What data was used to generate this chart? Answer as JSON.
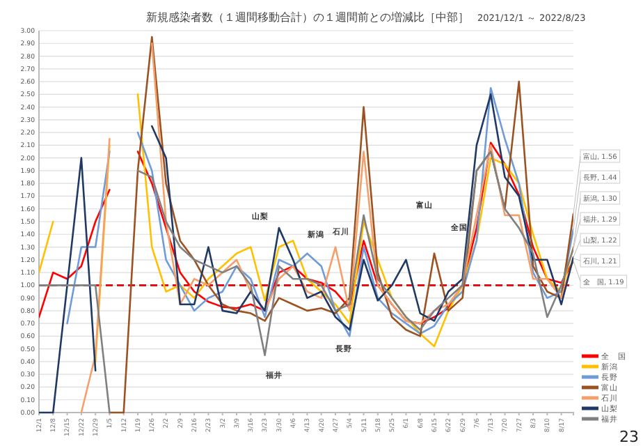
{
  "chart_data": {
    "type": "line",
    "title": "新規感染者数（１週間移動合計）の１週間前との増減比［中部］",
    "subtitle": "2021/12/1 ～ 2022/8/23",
    "x": [
      "2021-12-01",
      "2021-12-08",
      "2021-12-15",
      "2021-12-22",
      "2021-12-29",
      "2022-01-05",
      "2022-01-12",
      "2022-01-19",
      "2022-01-26",
      "2022-02-02",
      "2022-02-09",
      "2022-02-16",
      "2022-02-23",
      "2022-03-02",
      "2022-03-09",
      "2022-03-16",
      "2022-03-23",
      "2022-03-30",
      "2022-04-06",
      "2022-04-13",
      "2022-04-20",
      "2022-04-27",
      "2022-05-04",
      "2022-05-11",
      "2022-05-18",
      "2022-05-25",
      "2022-06-01",
      "2022-06-08",
      "2022-06-15",
      "2022-06-22",
      "2022-06-29",
      "2022-07-06",
      "2022-07-13",
      "2022-07-20",
      "2022-07-27",
      "2022-08-03",
      "2022-08-10",
      "2022-08-17",
      "2022-08-23"
    ],
    "series": [
      {
        "name": "全　国",
        "color": "#ff0000",
        "values": [
          0.75,
          1.1,
          1.05,
          1.15,
          1.5,
          1.75,
          null,
          2.05,
          1.8,
          1.45,
          1.1,
          0.95,
          0.87,
          0.83,
          0.82,
          0.85,
          0.8,
          1.1,
          1.15,
          1.05,
          1.02,
          0.95,
          0.82,
          1.35,
          1.0,
          0.85,
          0.72,
          0.7,
          0.75,
          0.82,
          1.0,
          1.45,
          2.12,
          1.95,
          1.71,
          1.3,
          1.05,
          1.02,
          1.19
        ]
      },
      {
        "name": "新潟",
        "color": "#ffc000",
        "values": [
          1.1,
          1.5,
          null,
          null,
          0.4,
          2.1,
          null,
          2.5,
          1.3,
          0.95,
          1.0,
          0.9,
          1.05,
          1.15,
          1.25,
          1.3,
          0.88,
          1.3,
          1.35,
          1.05,
          0.95,
          0.85,
          0.7,
          1.5,
          1.2,
          0.9,
          0.75,
          0.62,
          0.52,
          0.8,
          1.0,
          1.35,
          2.0,
          1.95,
          1.8,
          1.4,
          1.05,
          0.95,
          1.3
        ]
      },
      {
        "name": "長野",
        "color": "#6f9bd8",
        "values": [
          null,
          null,
          0.7,
          1.3,
          1.3,
          2.05,
          null,
          2.2,
          1.9,
          1.2,
          1.0,
          0.8,
          0.9,
          0.95,
          1.15,
          1.05,
          0.75,
          1.2,
          1.15,
          1.25,
          1.15,
          0.8,
          0.6,
          1.3,
          0.9,
          0.78,
          0.7,
          0.62,
          0.68,
          0.85,
          0.95,
          1.35,
          2.55,
          2.15,
          1.8,
          1.1,
          0.9,
          0.95,
          1.44
        ]
      },
      {
        "name": "富山",
        "color": "#9c5220",
        "values": [
          null,
          null,
          null,
          null,
          null,
          0.0,
          0.0,
          1.9,
          2.95,
          1.8,
          1.35,
          1.2,
          1.0,
          0.85,
          0.8,
          0.78,
          0.72,
          0.9,
          0.85,
          0.8,
          0.82,
          0.78,
          0.9,
          2.4,
          1.1,
          0.75,
          0.65,
          0.6,
          1.25,
          0.8,
          0.9,
          1.9,
          2.05,
          1.6,
          2.6,
          1.15,
          0.95,
          0.9,
          1.56
        ]
      },
      {
        "name": "石川",
        "color": "#f4a06a",
        "values": [
          null,
          null,
          null,
          0.0,
          0.45,
          2.15,
          null,
          null,
          2.9,
          1.5,
          0.85,
          1.05,
          1.0,
          1.1,
          1.2,
          0.95,
          0.8,
          1.05,
          1.15,
          0.95,
          0.9,
          1.3,
          0.8,
          2.05,
          1.0,
          0.85,
          0.72,
          0.7,
          0.8,
          0.85,
          1.0,
          1.55,
          2.1,
          1.55,
          1.55,
          1.05,
          1.05,
          0.9,
          1.21
        ]
      },
      {
        "name": "山梨",
        "color": "#1f3864",
        "values": [
          0.0,
          0.0,
          1.0,
          2.0,
          0.33,
          null,
          null,
          null,
          2.25,
          2.0,
          0.85,
          0.85,
          1.3,
          0.8,
          0.78,
          0.95,
          0.8,
          1.45,
          1.2,
          0.9,
          0.95,
          0.75,
          0.65,
          1.2,
          0.88,
          1.0,
          1.2,
          0.78,
          0.72,
          0.95,
          1.05,
          2.1,
          2.5,
          1.85,
          1.7,
          1.2,
          1.2,
          0.85,
          1.22
        ]
      },
      {
        "name": "福井",
        "color": "#808080",
        "values": [
          1.0,
          1.0,
          1.0,
          1.0,
          1.0,
          0.0,
          null,
          1.9,
          1.85,
          1.5,
          1.3,
          1.2,
          1.15,
          1.1,
          1.15,
          1.0,
          0.45,
          1.15,
          1.05,
          1.05,
          1.0,
          0.8,
          0.85,
          1.55,
          1.05,
          0.9,
          0.75,
          0.65,
          0.8,
          0.9,
          1.0,
          1.9,
          2.05,
          1.6,
          1.45,
          1.25,
          0.75,
          1.0,
          1.29
        ]
      }
    ],
    "ylim": [
      0,
      3
    ],
    "yticks": [
      {
        "value": 0,
        "label": "0.00"
      },
      {
        "value": 0.1,
        "label": "0.10"
      },
      {
        "value": 0.2,
        "label": "0.20"
      },
      {
        "value": 0.3,
        "label": "0.30"
      },
      {
        "value": 0.4,
        "label": "0.40"
      },
      {
        "value": 0.5,
        "label": "0.50"
      },
      {
        "value": 0.6,
        "label": "0.60"
      },
      {
        "value": 0.7,
        "label": "0.70"
      },
      {
        "value": 0.8,
        "label": "0.80"
      },
      {
        "value": 0.9,
        "label": "0.90"
      },
      {
        "value": 1,
        "label": "1.00"
      },
      {
        "value": 1.1,
        "label": "1.10"
      },
      {
        "value": 1.2,
        "label": "1.20"
      },
      {
        "value": 1.3,
        "label": "1.30"
      },
      {
        "value": 1.4,
        "label": "1.40"
      },
      {
        "value": 1.5,
        "label": "1.50"
      },
      {
        "value": 1.6,
        "label": "1.60"
      },
      {
        "value": 1.7,
        "label": "1.70"
      },
      {
        "value": 1.8,
        "label": "1.80"
      },
      {
        "value": 1.9,
        "label": "1.90"
      },
      {
        "value": 2,
        "label": "2.00"
      },
      {
        "value": 2.1,
        "label": "2.10"
      },
      {
        "value": 2.2,
        "label": "2.20"
      },
      {
        "value": 2.3,
        "label": "2.30"
      },
      {
        "value": 2.4,
        "label": "2.40"
      },
      {
        "value": 2.5,
        "label": "2.50"
      },
      {
        "value": 2.6,
        "label": "2.60"
      },
      {
        "value": 2.7,
        "label": "2.70"
      },
      {
        "value": 2.8,
        "label": "2.80"
      },
      {
        "value": 2.9,
        "label": "2.90"
      },
      {
        "value": 3,
        "label": "3.00"
      }
    ],
    "xlim": [
      "2021-12-01",
      "2022-08-23"
    ],
    "xticks": [
      {
        "value": "2021-12-01",
        "label": "12/1"
      },
      {
        "value": "2021-12-08",
        "label": "12/8"
      },
      {
        "value": "2021-12-15",
        "label": "12/15"
      },
      {
        "value": "2021-12-22",
        "label": "12/22"
      },
      {
        "value": "2021-12-29",
        "label": "12/29"
      },
      {
        "value": "2022-01-05",
        "label": "1/5"
      },
      {
        "value": "2022-01-12",
        "label": "1/12"
      },
      {
        "value": "2022-01-19",
        "label": "1/19"
      },
      {
        "value": "2022-01-26",
        "label": "1/26"
      },
      {
        "value": "2022-02-02",
        "label": "2/2"
      },
      {
        "value": "2022-02-09",
        "label": "2/9"
      },
      {
        "value": "2022-02-16",
        "label": "2/16"
      },
      {
        "value": "2022-02-23",
        "label": "2/23"
      },
      {
        "value": "2022-03-02",
        "label": "3/2"
      },
      {
        "value": "2022-03-09",
        "label": "3/9"
      },
      {
        "value": "2022-03-16",
        "label": "3/16"
      },
      {
        "value": "2022-03-23",
        "label": "3/23"
      },
      {
        "value": "2022-03-30",
        "label": "3/30"
      },
      {
        "value": "2022-04-06",
        "label": "4/6"
      },
      {
        "value": "2022-04-13",
        "label": "4/13"
      },
      {
        "value": "2022-04-20",
        "label": "4/20"
      },
      {
        "value": "2022-04-27",
        "label": "4/27"
      },
      {
        "value": "2022-05-04",
        "label": "5/4"
      },
      {
        "value": "2022-05-11",
        "label": "5/11"
      },
      {
        "value": "2022-05-18",
        "label": "5/18"
      },
      {
        "value": "2022-05-25",
        "label": "5/25"
      },
      {
        "value": "2022-06-01",
        "label": "6/1"
      },
      {
        "value": "2022-06-08",
        "label": "6/8"
      },
      {
        "value": "2022-06-15",
        "label": "6/15"
      },
      {
        "value": "2022-06-22",
        "label": "6/22"
      },
      {
        "value": "2022-06-29",
        "label": "6/29"
      },
      {
        "value": "2022-07-06",
        "label": "7/6"
      },
      {
        "value": "2022-07-13",
        "label": "7/13"
      },
      {
        "value": "2022-07-20",
        "label": "7/20"
      },
      {
        "value": "2022-07-27",
        "label": "7/27"
      },
      {
        "value": "2022-08-03",
        "label": "8/3"
      },
      {
        "value": "2022-08-10",
        "label": "8/10"
      },
      {
        "value": "2022-08-17",
        "label": "8/17"
      }
    ],
    "grid": "y",
    "legend": "bottom right",
    "marker": "none",
    "line_style": "solid",
    "ref_lines": [
      {
        "axis": "y",
        "value": 1,
        "label": null,
        "color": "#e00000",
        "line_style": "dashed"
      }
    ],
    "annotations": [
      "山梨",
      "新潟",
      "石川",
      "富山",
      "全国",
      "長野",
      "福井",
      {
        "text": "富山, 1.56",
        "x": "2022-08-23",
        "y": 1.56
      },
      {
        "text": "長野, 1.44",
        "x": "2022-08-23",
        "y": 1.44
      },
      {
        "text": "新潟, 1.30",
        "x": "2022-08-23",
        "y": 1.3
      },
      {
        "text": "福井, 1.29",
        "x": "2022-08-23",
        "y": 1.29
      },
      {
        "text": "山梨, 1.22",
        "x": "2022-08-23",
        "y": 1.22
      },
      {
        "text": "石川, 1.21",
        "x": "2022-08-23",
        "y": 1.21
      },
      {
        "text": "全　国, 1.19",
        "x": "2022-08-23",
        "y": 1.19
      },
      "23"
    ]
  }
}
